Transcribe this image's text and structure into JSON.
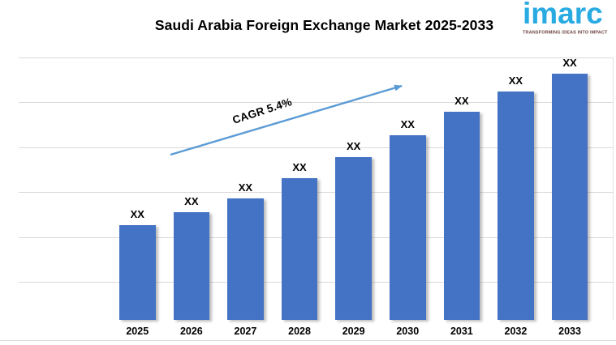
{
  "header": {
    "title": "Saudi Arabia Foreign Exchange Market 2025-2033"
  },
  "logo": {
    "wordmark": "imarc",
    "tagline": "TRANSFORMING IDEAS INTO IMPACT",
    "wordmark_color": "#29ABE2",
    "tagline_color": "#6E4343"
  },
  "chart_data": {
    "type": "bar",
    "title": "Saudi Arabia Foreign Exchange Market 2025-2033",
    "categories": [
      "2025",
      "2026",
      "2027",
      "2028",
      "2029",
      "2030",
      "2031",
      "2032",
      "2033"
    ],
    "values": [
      "XX",
      "XX",
      "XX",
      "XX",
      "XX",
      "XX",
      "XX",
      "XX",
      "XX"
    ],
    "values_masked": true,
    "relative_heights_pct": [
      36.1,
      41.0,
      46.3,
      54.0,
      62.0,
      70.4,
      79.3,
      87.0,
      93.8
    ],
    "xlabel": "",
    "ylabel": "",
    "legend_position": "none",
    "grid": "horizontal",
    "gridline_color": "#D9D9D9",
    "bar_color": "#4472C4",
    "annotation": {
      "text": "CAGR 5.4%",
      "style": "upward-trend-arrow",
      "arrow_color": "#5B9BD5"
    }
  }
}
